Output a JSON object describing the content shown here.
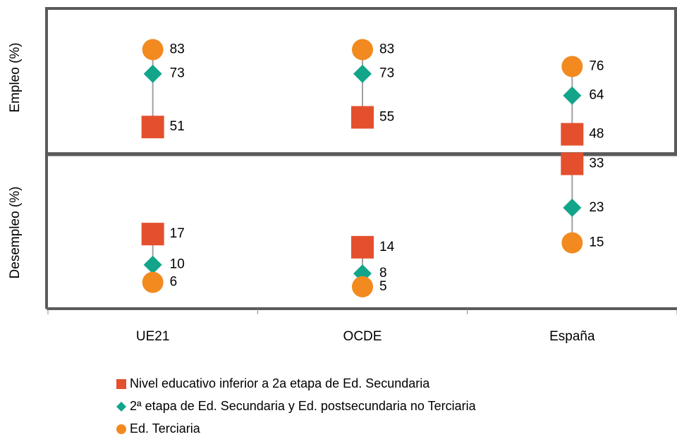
{
  "chart_data": [
    {
      "type": "dot",
      "ylabel": "Empleo (%)",
      "ylim": [
        40,
        100
      ],
      "series": [
        {
          "name": "Nivel educativo inferior a 2a etapa de Ed. Secundaria",
          "color": "#e4502e",
          "marker": "square",
          "values": [
            51,
            55,
            48
          ]
        },
        {
          "name": "2ª etapa de Ed. Secundaria y Ed. postsecundaria no Terciaria",
          "color": "#12a58a",
          "marker": "diamond",
          "values": [
            73,
            73,
            64
          ]
        },
        {
          "name": "Ed. Terciaria",
          "color": "#f28a1f",
          "marker": "circle",
          "values": [
            83,
            83,
            76
          ]
        }
      ]
    },
    {
      "type": "dot",
      "ylabel": "Desempleo (%)",
      "ylim": [
        0,
        35
      ],
      "categories": [
        "UE21",
        "OCDE",
        "España"
      ],
      "series": [
        {
          "color": "#e4502e",
          "marker": "square",
          "values": [
            17,
            14,
            33
          ]
        },
        {
          "color": "#12a58a",
          "marker": "diamond",
          "values": [
            10,
            8,
            23
          ]
        },
        {
          "color": "#f28a1f",
          "marker": "circle",
          "values": [
            6,
            5,
            15
          ]
        }
      ]
    }
  ]
}
